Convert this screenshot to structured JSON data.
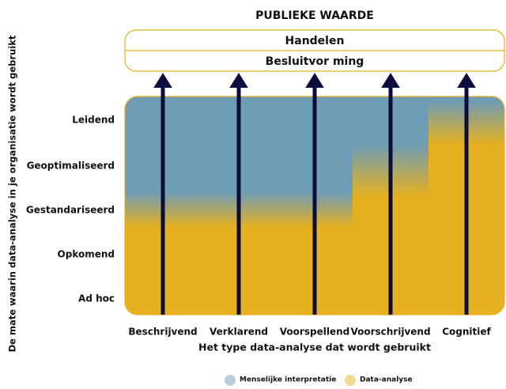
{
  "title": "PUBLIEKE WAARDE",
  "boxes": [
    "Handelen",
    "Besluitvor ming"
  ],
  "y_levels": [
    "Leidend",
    "Geoptimaliseerd",
    "Gestandariseerd",
    "Opkomend",
    "Ad hoc"
  ],
  "x_categories": [
    "Beschrijvend",
    "Verklarend",
    "Voorspellend",
    "Voorschrijvend",
    "Cognitief"
  ],
  "x_axis_label": "Het type data-analyse dat wordt gebruikt",
  "y_axis_label": "De mate waarin data-analyse in je organisatie wordt gebruikt",
  "legend": [
    "Menselijke interpretatie",
    "Data-analyse"
  ]
}
